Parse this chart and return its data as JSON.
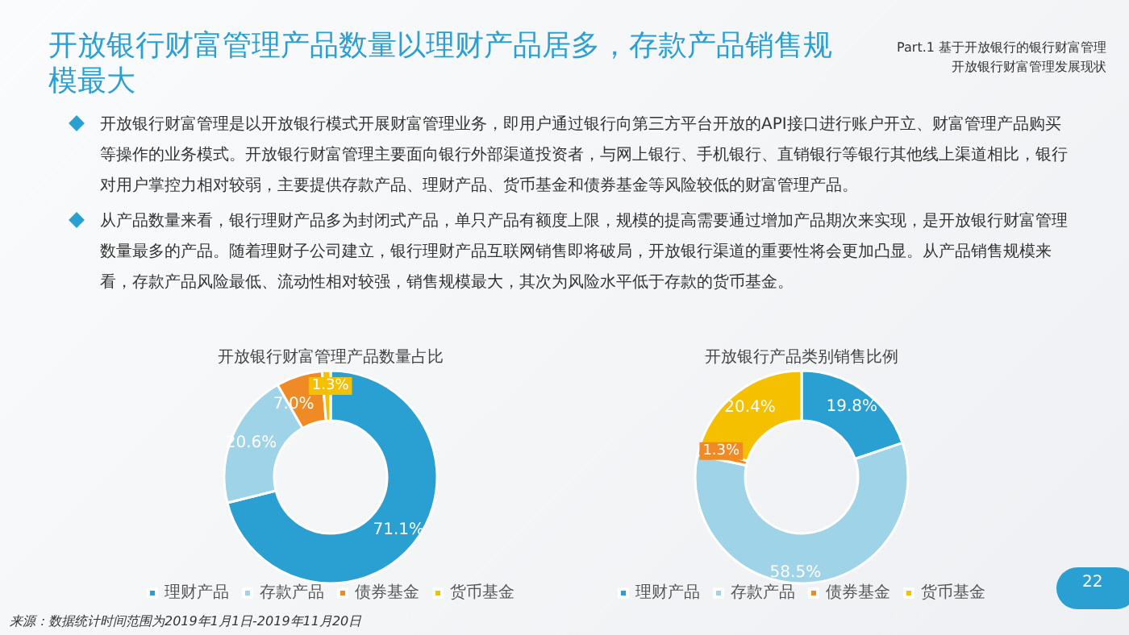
{
  "chart_data": [
    {
      "type": "donut",
      "title": "开放银行财富管理产品数量占比",
      "categories": [
        "理财产品",
        "存款产品",
        "债券基金",
        "货币基金"
      ],
      "values": [
        71.1,
        20.6,
        7.0,
        1.3
      ],
      "colors": [
        "#2a9fd2",
        "#9fd3e8",
        "#f08a24",
        "#f5c000"
      ],
      "value_labels": [
        "71.1%",
        "20.6%",
        "7.0%",
        "1.3%"
      ],
      "legend": "bottom",
      "annotations": [
        "开放银行财富管理产品数量以理财产品居多，存款产品销售规模最大",
        "Part.1 基于开放银行的银行财富管理",
        "开放银行财富管理发展现状",
        "开放银行财富管理是以开放银行模式开展财富管理业务，即用户通过银行向第三方平台开放的API接口进行账户开立、财富管理产品购买等操作的业务模式。开放银行财富管理主要面向银行外部渠道投资者，与网上银行、手机银行、直销银行等银行其他线上渠道相比，银行对用户掌控力相对较弱，主要提供存款产品、理财产品、货币基金和债券基金等风险较低的财富管理产品。",
        "从产品数量来看，银行理财产品多为封闭式产品，单只产品有额度上限，规模的提高需要通过增加产品期次来实现，是开放银行财富管理数量最多的产品。随着理财子公司建立，银行理财产品互联网销售即将破局，开放银行渠道的重要性将会更加凸显。从产品销售规模来看，存款产品风险最低、流动性相对较强，销售规模最大，其次为风险水平低于存款的货币基金。",
        "来源：数据统计时间范围为2019年1月1日-2019年11月20日",
        "22"
      ]
    },
    {
      "type": "donut",
      "title": "开放银行产品类别销售比例",
      "categories": [
        "理财产品",
        "存款产品",
        "债券基金",
        "货币基金"
      ],
      "values": [
        19.8,
        58.5,
        1.3,
        20.4
      ],
      "colors": [
        "#2a9fd2",
        "#9fd3e8",
        "#f08a24",
        "#f5c000"
      ],
      "value_labels": [
        "19.8%",
        "58.5%",
        "1.3%",
        "20.4%"
      ],
      "legend": "bottom"
    }
  ]
}
